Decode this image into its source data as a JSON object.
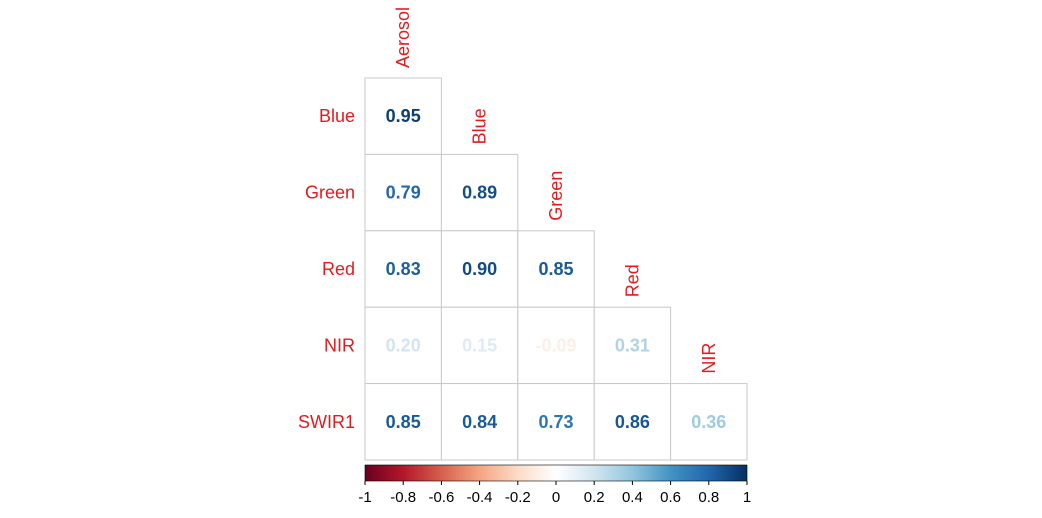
{
  "chart_data": {
    "type": "heatmap",
    "variables": [
      "Aerosol",
      "Blue",
      "Green",
      "Red",
      "NIR",
      "SWIR1"
    ],
    "row_labels": [
      "Blue",
      "Green",
      "Red",
      "NIR",
      "SWIR1"
    ],
    "col_labels": [
      "Aerosol",
      "Blue",
      "Green",
      "Red",
      "NIR"
    ],
    "values": [
      [
        0.95,
        null,
        null,
        null,
        null
      ],
      [
        0.79,
        0.89,
        null,
        null,
        null
      ],
      [
        0.83,
        0.9,
        0.85,
        null,
        null
      ],
      [
        0.2,
        0.15,
        -0.09,
        0.31,
        null
      ],
      [
        0.85,
        0.84,
        0.73,
        0.86,
        0.36
      ]
    ],
    "value_labels": [
      [
        "0.95",
        "",
        "",
        "",
        ""
      ],
      [
        "0.79",
        "0.89",
        "",
        "",
        ""
      ],
      [
        "0.83",
        "0.90",
        "0.85",
        "",
        ""
      ],
      [
        "0.20",
        "0.15",
        "-0.09",
        "0.31",
        ""
      ],
      [
        "0.85",
        "0.84",
        "0.73",
        "0.86",
        "0.36"
      ]
    ],
    "layout": "lower-triangle",
    "label_color": "#e41a1c",
    "color_scale": {
      "range": [
        -1,
        1
      ],
      "stops": [
        "#67001f",
        "#b2182b",
        "#d6604d",
        "#f4a582",
        "#fddbc7",
        "#ffffff",
        "#d1e5f0",
        "#92c5de",
        "#4393c3",
        "#2166ac",
        "#053061"
      ]
    },
    "colorbar": {
      "orientation": "horizontal",
      "position": "bottom",
      "ticks": [
        -1,
        -0.8,
        -0.6,
        -0.4,
        -0.2,
        0,
        0.2,
        0.4,
        0.6,
        0.8,
        1
      ],
      "tick_labels": [
        "-1",
        "-0.8",
        "-0.6",
        "-0.4",
        "-0.2",
        "0",
        "0.2",
        "0.4",
        "0.6",
        "0.8",
        "1"
      ]
    },
    "grid": true,
    "legend": "bottom"
  }
}
